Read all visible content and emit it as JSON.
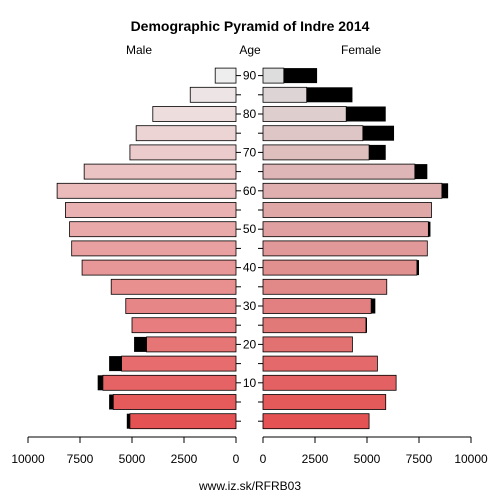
{
  "chart_data": {
    "type": "bar",
    "title": "Demographic Pyramid of Indre 2014",
    "left_label": "Male",
    "center_label": "Age",
    "right_label": "Female",
    "footer": "www.iz.sk/RFRB03",
    "age_ticks": [
      10,
      20,
      30,
      40,
      50,
      60,
      70,
      80,
      90
    ],
    "x_ticks_male": [
      "10000",
      "7500",
      "5000",
      "2500",
      "0"
    ],
    "x_ticks_female": [
      "0",
      "2500",
      "5000",
      "7500",
      "10000"
    ],
    "xlim": [
      0,
      10000
    ],
    "groups": [
      {
        "age": 0,
        "male": 5100,
        "male_excess": 150,
        "female": 5100,
        "female_excess": 0
      },
      {
        "age": 5,
        "male": 5900,
        "male_excess": 200,
        "female": 5900,
        "female_excess": 0
      },
      {
        "age": 10,
        "male": 6400,
        "male_excess": 250,
        "female": 6400,
        "female_excess": 0
      },
      {
        "age": 15,
        "male": 5500,
        "male_excess": 600,
        "female": 5500,
        "female_excess": 0
      },
      {
        "age": 20,
        "male": 4300,
        "male_excess": 600,
        "female": 4300,
        "female_excess": 0
      },
      {
        "age": 25,
        "male": 5000,
        "male_excess": 0,
        "female": 4950,
        "female_excess": 50
      },
      {
        "age": 30,
        "male": 5300,
        "male_excess": 0,
        "female": 5200,
        "female_excess": 200
      },
      {
        "age": 35,
        "male": 6000,
        "male_excess": 0,
        "female": 5950,
        "female_excess": 0
      },
      {
        "age": 40,
        "male": 7400,
        "male_excess": 0,
        "female": 7400,
        "female_excess": 100
      },
      {
        "age": 45,
        "male": 7900,
        "male_excess": 0,
        "female": 7900,
        "female_excess": 0
      },
      {
        "age": 50,
        "male": 8000,
        "male_excess": 0,
        "female": 7950,
        "female_excess": 100
      },
      {
        "age": 55,
        "male": 8200,
        "male_excess": 0,
        "female": 8100,
        "female_excess": 0
      },
      {
        "age": 60,
        "male": 8600,
        "male_excess": 0,
        "female": 8600,
        "female_excess": 300
      },
      {
        "age": 65,
        "male": 7300,
        "male_excess": 0,
        "female": 7300,
        "female_excess": 600
      },
      {
        "age": 70,
        "male": 5100,
        "male_excess": 0,
        "female": 5100,
        "female_excess": 800
      },
      {
        "age": 75,
        "male": 4800,
        "male_excess": 0,
        "female": 4800,
        "female_excess": 1500
      },
      {
        "age": 80,
        "male": 4000,
        "male_excess": 0,
        "female": 4000,
        "female_excess": 1900
      },
      {
        "age": 85,
        "male": 2200,
        "male_excess": 0,
        "female": 2100,
        "female_excess": 2200
      },
      {
        "age": 90,
        "male": 1000,
        "male_excess": 0,
        "female": 1000,
        "female_excess": 1600
      }
    ],
    "colors": {
      "excess": "#000000",
      "male_young": "#e45253",
      "male_old": "#eeeeee",
      "female_young": "#e45253",
      "female_old": "#dddddd",
      "outline": "#000000"
    }
  }
}
